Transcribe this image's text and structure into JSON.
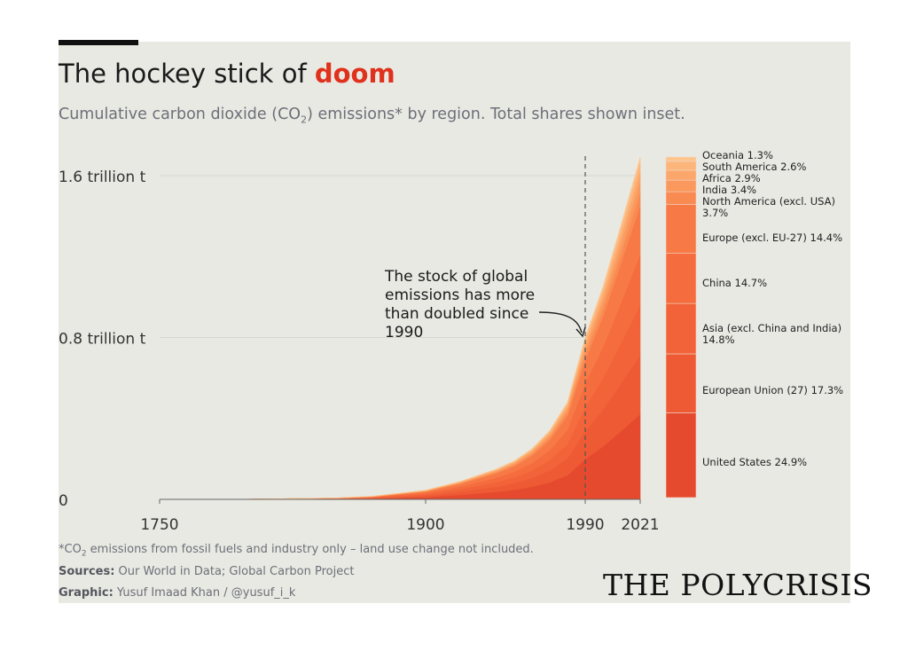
{
  "header": {
    "title_prefix": "The hockey stick of ",
    "title_highlight": "doom",
    "subtitle_before": "Cumulative carbon dioxide (CO",
    "subtitle_sub": "2",
    "subtitle_after": ") emissions* by region. Total shares shown inset."
  },
  "colors": {
    "accent": "#e0311c",
    "background": "#e8e9e3"
  },
  "chart_data": {
    "type": "area",
    "stacked": true,
    "x_ticks": [
      1750,
      1900,
      1990,
      2021
    ],
    "y_ticks": [
      {
        "value": 0,
        "label": "0"
      },
      {
        "value": 0.8,
        "label": "0.8 trillion t"
      },
      {
        "value": 1.6,
        "label": "1.6 trillion t"
      }
    ],
    "ylim": [
      0,
      1.6
    ],
    "xlim": [
      1750,
      2021
    ],
    "x": [
      1750,
      1800,
      1850,
      1870,
      1900,
      1920,
      1940,
      1950,
      1960,
      1970,
      1980,
      1990,
      2000,
      2010,
      2021
    ],
    "total": [
      0,
      0.001,
      0.007,
      0.015,
      0.045,
      0.09,
      0.15,
      0.19,
      0.25,
      0.34,
      0.48,
      0.8,
      1.05,
      1.35,
      1.69
    ],
    "reference_line": {
      "x": 1990,
      "style": "dashed"
    },
    "annotation": "The stock of global emissions has more than doubled since 1990",
    "series": [
      {
        "name": "United States",
        "share": 24.9,
        "label": "United States 24.9%",
        "color": "#e54a2e"
      },
      {
        "name": "European Union (27)",
        "share": 17.3,
        "label": "European Union (27) 17.3%",
        "color": "#ee5a34"
      },
      {
        "name": "Asia (excl. China and India)",
        "share": 14.8,
        "label": "Asia (excl. China and India) 14.8%",
        "color": "#f2633a"
      },
      {
        "name": "China",
        "share": 14.7,
        "label": "China 14.7%",
        "color": "#f56c3e"
      },
      {
        "name": "Europe (excl. EU-27)",
        "share": 14.4,
        "label": "Europe (excl. EU-27) 14.4%",
        "color": "#f77a46"
      },
      {
        "name": "North America (excl. USA)",
        "share": 3.7,
        "label": "North America (excl. USA) 3.7%",
        "color": "#f98a52"
      },
      {
        "name": "India",
        "share": 3.4,
        "label": "India 3.4%",
        "color": "#fa985d"
      },
      {
        "name": "Africa",
        "share": 2.9,
        "label": "Africa 2.9%",
        "color": "#fba66a"
      },
      {
        "name": "South America",
        "share": 2.6,
        "label": "South America 2.6%",
        "color": "#fcb57a"
      },
      {
        "name": "Oceania",
        "share": 1.3,
        "label": "Oceania 1.3%",
        "color": "#fdc48c"
      }
    ],
    "inset_labels": [
      "Oceania 1.3%",
      "South America 2.6%",
      "Africa 2.9%",
      "India 3.4%",
      "North America (excl. USA)",
      "3.7%",
      "Europe (excl. EU-27) 14.4%",
      "China 14.7%",
      "Asia (excl. China and India)",
      "14.8%",
      "European Union (27) 17.3%",
      "United States 24.9%"
    ]
  },
  "footer": {
    "note_before": "*CO",
    "note_sub": "2",
    "note_after": " emissions from fossil fuels and industry only – land use change not included.",
    "sources_label": "Sources:",
    "sources_text": " Our World in Data; Global Carbon Project",
    "graphic_label": "Graphic:",
    "graphic_text": " Yusuf Imaad Khan / @yusuf_i_k",
    "brand": "THE POLYCRISIS"
  }
}
